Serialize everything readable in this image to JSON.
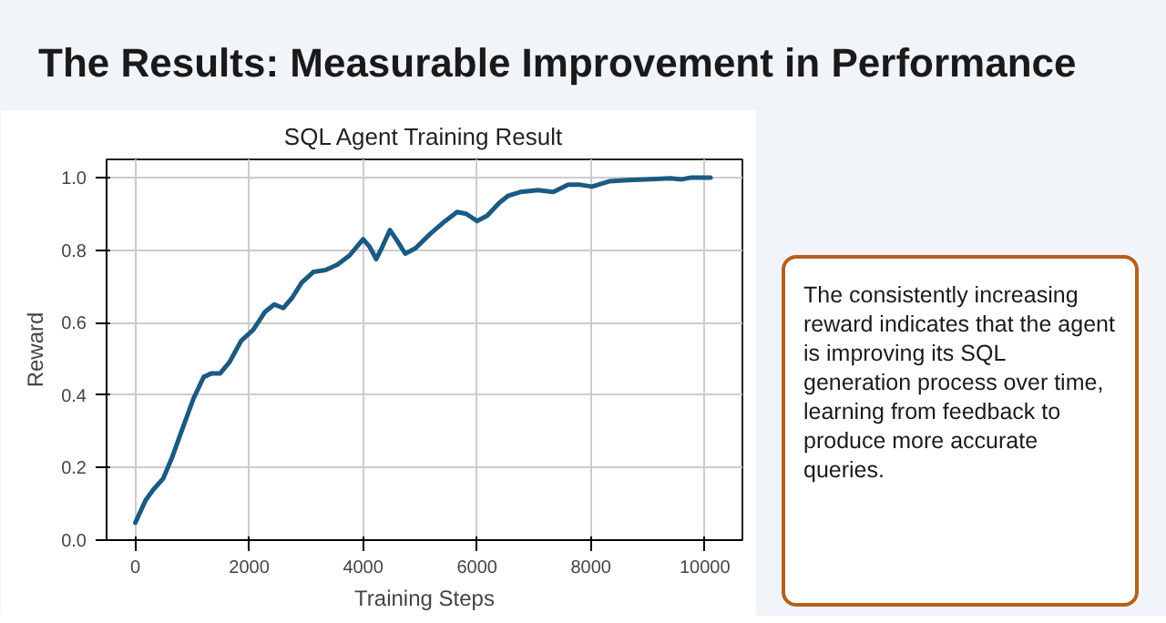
{
  "chart_data": {
    "type": "line",
    "title": "SQL Agent Training Result",
    "xlabel": "Training Steps",
    "ylabel": "Reward",
    "annotations": [
      "The Results: Measurable Improvement in Performance",
      "The consistently increasing reward indicates that the agent is improving its SQL generation process over time, learning from feedback to produce more accurate queries."
    ],
    "x": [
      0,
      180,
      320,
      490,
      650,
      810,
      1020,
      1200,
      1340,
      1490,
      1650,
      1860,
      2070,
      2280,
      2440,
      2600,
      2760,
      2920,
      3130,
      3340,
      3550,
      3760,
      3920,
      4000,
      4110,
      4230,
      4340,
      4470,
      4580,
      4740,
      4920,
      5180,
      5440,
      5650,
      5810,
      6000,
      6180,
      6390,
      6550,
      6760,
      7070,
      7340,
      7600,
      7810,
      8020,
      8330,
      8650,
      8970,
      9390,
      9600,
      9760,
      10100
    ],
    "series": [
      {
        "color": "#1b5a82",
        "values": [
          0.048,
          0.11,
          0.14,
          0.17,
          0.23,
          0.3,
          0.39,
          0.45,
          0.46,
          0.46,
          0.49,
          0.55,
          0.58,
          0.63,
          0.65,
          0.64,
          0.67,
          0.71,
          0.74,
          0.745,
          0.76,
          0.785,
          0.815,
          0.83,
          0.81,
          0.775,
          0.81,
          0.855,
          0.83,
          0.79,
          0.805,
          0.845,
          0.88,
          0.905,
          0.9,
          0.88,
          0.895,
          0.93,
          0.95,
          0.96,
          0.965,
          0.96,
          0.98,
          0.98,
          0.975,
          0.99,
          0.993,
          0.995,
          0.998,
          0.995,
          1.0,
          1.0
        ]
      }
    ],
    "xlim": [
      -505,
      10660
    ],
    "ylim": [
      0.0,
      1.05
    ],
    "xticks": [
      0,
      2000,
      4000,
      6000,
      8000,
      10000
    ],
    "yticks": [
      {
        "value": 0,
        "label": "0.0"
      },
      {
        "value": 0.2,
        "label": "0.2"
      },
      {
        "value": 0.4,
        "label": "0.4"
      },
      {
        "value": 0.6,
        "label": "0.6"
      },
      {
        "value": 0.8,
        "label": "0.8"
      },
      {
        "value": 1.0,
        "label": "1.0"
      }
    ],
    "grid": true,
    "line_style": "solid"
  }
}
